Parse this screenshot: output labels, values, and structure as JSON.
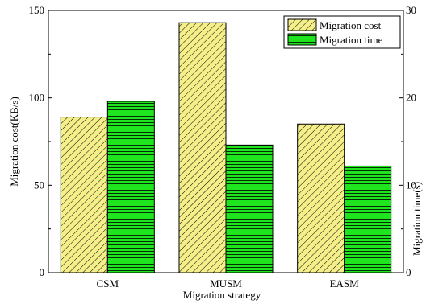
{
  "chart_data": {
    "type": "bar",
    "categories": [
      "CSM",
      "MUSM",
      "EASM"
    ],
    "series": [
      {
        "name": "Migration cost",
        "axis": "left",
        "values": [
          89,
          143,
          85
        ],
        "color": "#f5ef8a",
        "pattern": "diagonal-hatch"
      },
      {
        "name": "Migration time",
        "axis": "right",
        "values": [
          19.6,
          14.6,
          12.2
        ],
        "color": "#1ee51e",
        "pattern": "horizontal-hatch"
      }
    ],
    "xlabel": "Migration strategy",
    "ylabel": "Migration cost(KB/s)",
    "y2label": "Migration time(s)",
    "ylim": [
      0,
      150
    ],
    "y2lim": [
      0,
      30
    ],
    "yticks": [
      "0",
      "50",
      "100",
      "150"
    ],
    "y2ticks": [
      "0",
      "10",
      "20",
      "30"
    ],
    "grid": false,
    "legend_position": "top-right"
  }
}
